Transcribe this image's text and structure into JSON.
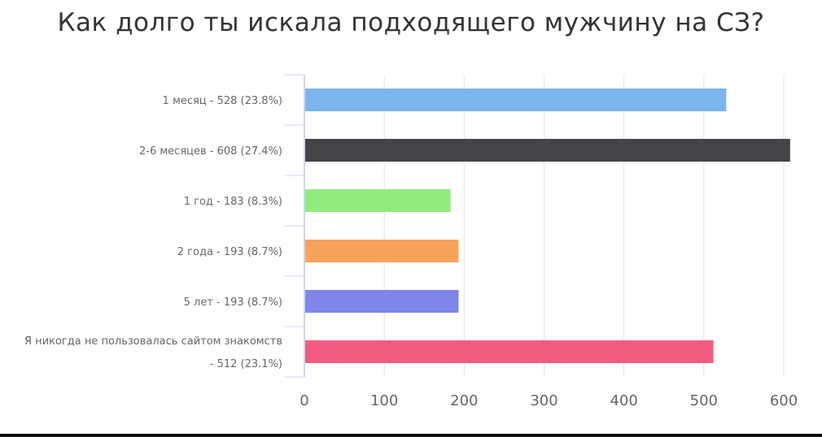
{
  "chart_data": {
    "type": "bar",
    "orientation": "horizontal",
    "title": "Как долго ты искала подходящего мужчину на СЗ?",
    "categories": [
      "1 месяц - 528 (23.8%)",
      "2-6 месяцев - 608 (27.4%)",
      "1 год - 183 (8.3%)",
      "2 года - 193 (8.7%)",
      "5 лет - 193 (8.7%)",
      "Я никогда не пользовалась сайтом знакомств - 512 (23.1%)"
    ],
    "category_label_lines": [
      [
        "1 месяц - 528 (23.8%)"
      ],
      [
        "2-6 месяцев - 608 (27.4%)"
      ],
      [
        "1 год - 183 (8.3%)"
      ],
      [
        "2 года - 193 (8.7%)"
      ],
      [
        "5 лет - 193 (8.7%)"
      ],
      [
        "Я никогда не пользовалась сайтом знакомств",
        "- 512 (23.1%)"
      ]
    ],
    "values": [
      528,
      608,
      183,
      193,
      193,
      512
    ],
    "colors": [
      "#7cb5ec",
      "#434348",
      "#90ed7d",
      "#f7a35c",
      "#8085e9",
      "#f15c80"
    ],
    "xlim": [
      0,
      600
    ],
    "xticks": [
      0,
      100,
      200,
      300,
      400,
      500,
      600
    ],
    "grid": true,
    "legend": "none"
  }
}
